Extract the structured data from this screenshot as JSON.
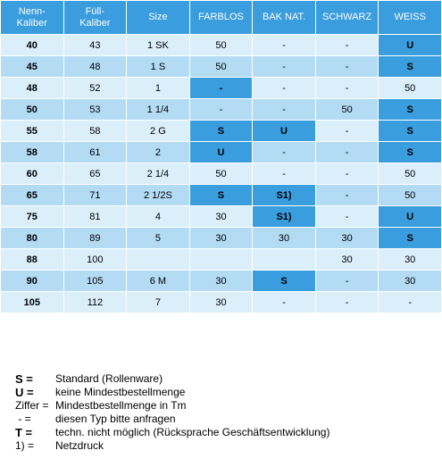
{
  "table": {
    "columns": [
      "Nenn-\nKaliber",
      "Füll-\nKaliber",
      "Size",
      "FARBLOS",
      "BAK NAT.",
      "SCHWARZ",
      "WEISS"
    ],
    "rows": [
      {
        "cells": [
          "40",
          "43",
          "1 SK",
          "50",
          "-",
          "-",
          "U"
        ],
        "highlight": [
          6
        ]
      },
      {
        "cells": [
          "45",
          "48",
          "1 S",
          "50",
          "-",
          "-",
          "S"
        ],
        "highlight": [
          6
        ]
      },
      {
        "cells": [
          "48",
          "52",
          "1",
          "-",
          "-",
          "-",
          "50"
        ],
        "highlight": [
          3
        ]
      },
      {
        "cells": [
          "50",
          "53",
          "1 1/4",
          "-",
          "-",
          "50",
          "S"
        ],
        "highlight": [
          6
        ]
      },
      {
        "cells": [
          "55",
          "58",
          "2 G",
          "S",
          "U",
          "-",
          "S"
        ],
        "highlight": [
          3,
          4,
          6
        ]
      },
      {
        "cells": [
          "58",
          "61",
          "2",
          "U",
          "-",
          "-",
          "S"
        ],
        "highlight": [
          3,
          6
        ]
      },
      {
        "cells": [
          "60",
          "65",
          "2 1/4",
          "50",
          "-",
          "-",
          "50"
        ],
        "highlight": []
      },
      {
        "cells": [
          "65",
          "71",
          "2 1/2S",
          "S",
          "S1)",
          "-",
          "50"
        ],
        "highlight": [
          3,
          4
        ]
      },
      {
        "cells": [
          "75",
          "81",
          "4",
          "30",
          "S1)",
          "-",
          "U"
        ],
        "highlight": [
          4,
          6
        ]
      },
      {
        "cells": [
          "80",
          "89",
          "5",
          "30",
          "30",
          "30",
          "S"
        ],
        "highlight": [
          6
        ]
      },
      {
        "cells": [
          "88",
          "100",
          null,
          null,
          null,
          "30",
          "30"
        ],
        "highlight": []
      },
      {
        "cells": [
          "90",
          "105",
          "6 M",
          "30",
          "S",
          "-",
          "30"
        ],
        "highlight": [
          4
        ]
      },
      {
        "cells": [
          "105",
          "112",
          "7",
          "30",
          "-",
          "-",
          "-"
        ],
        "highlight": []
      }
    ]
  },
  "legend": {
    "items": [
      {
        "key": "S =",
        "definition": "Standard (Rollenware)",
        "bold": true
      },
      {
        "key": "U =",
        "definition": "keine Mindestbestellmenge",
        "bold": true
      },
      {
        "key": "Ziffer =",
        "definition": "Mindestbestellmenge in Tm",
        "bold": false
      },
      {
        "key": " - =",
        "definition": "diesen Typ bitte anfragen",
        "bold": false
      },
      {
        "key": "T =",
        "definition": "techn. nicht möglich (Rücksprache Geschäftsentwicklung)",
        "bold": true
      },
      {
        "key": "1) =",
        "definition": "Netzdruck",
        "bold": false
      }
    ]
  }
}
